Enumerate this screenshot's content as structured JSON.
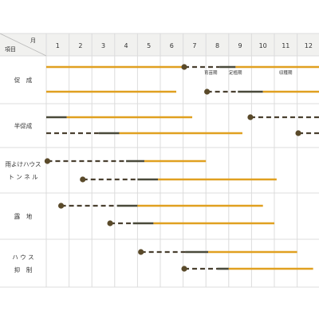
{
  "chart_data": {
    "type": "gantt",
    "header": {
      "month_label": "月",
      "item_label": "項目"
    },
    "months": [
      "1",
      "2",
      "3",
      "4",
      "5",
      "6",
      "7",
      "8",
      "9",
      "10",
      "11",
      "12"
    ],
    "phase_labels": [
      "育苗期",
      "定植期",
      "収穫期"
    ],
    "colors": {
      "sowing_dot": "#5a4a2a",
      "nursery_dash": "#4a4030",
      "planting": "#4a4a3a",
      "harvest": "#e0a020",
      "header_bg": "#f1f1ef",
      "grid": "#dcdcdc"
    },
    "groups": [
      {
        "label_lines": [
          "促　成"
        ],
        "rows": [
          {
            "segments": [
              {
                "kind": "harvest",
                "start": 1,
                "end": 7.0
              },
              {
                "kind": "sowing",
                "at": 7.05
              },
              {
                "kind": "nursery",
                "start": 7.05,
                "end": 8.6
              },
              {
                "kind": "planting",
                "start": 8.6,
                "end": 9.3
              },
              {
                "kind": "harvest",
                "start": 9.3,
                "end": 13
              }
            ]
          },
          {
            "segments": [
              {
                "kind": "harvest",
                "start": 1,
                "end": 6.7
              },
              {
                "kind": "sowing",
                "at": 8.05
              },
              {
                "kind": "nursery",
                "start": 8.05,
                "end": 9.4
              },
              {
                "kind": "planting",
                "start": 9.4,
                "end": 10.5
              },
              {
                "kind": "harvest",
                "start": 10.5,
                "end": 13
              }
            ]
          }
        ]
      },
      {
        "label_lines": [
          "半促成"
        ],
        "rows": [
          {
            "segments": [
              {
                "kind": "planting",
                "start": 1,
                "end": 1.9
              },
              {
                "kind": "harvest",
                "start": 1.9,
                "end": 7.4
              },
              {
                "kind": "sowing",
                "at": 9.95
              },
              {
                "kind": "nursery",
                "start": 9.95,
                "end": 13
              }
            ]
          },
          {
            "segments": [
              {
                "kind": "nursery",
                "start": 1,
                "end": 3.3
              },
              {
                "kind": "planting",
                "start": 3.3,
                "end": 4.2
              },
              {
                "kind": "harvest",
                "start": 4.2,
                "end": 9.6
              },
              {
                "kind": "sowing",
                "at": 12.05
              },
              {
                "kind": "nursery",
                "start": 12.05,
                "end": 13
              }
            ]
          }
        ]
      },
      {
        "label_lines": [
          "雨よけハウス",
          "ト ン ネ ル"
        ],
        "rows": [
          {
            "segments": [
              {
                "kind": "sowing",
                "at": 1.05
              },
              {
                "kind": "nursery",
                "start": 1.05,
                "end": 4.5
              },
              {
                "kind": "planting",
                "start": 4.5,
                "end": 5.3
              },
              {
                "kind": "harvest",
                "start": 5.3,
                "end": 8.0
              }
            ]
          },
          {
            "segments": [
              {
                "kind": "sowing",
                "at": 2.6
              },
              {
                "kind": "nursery",
                "start": 2.6,
                "end": 5.0
              },
              {
                "kind": "planting",
                "start": 5.0,
                "end": 5.9
              },
              {
                "kind": "harvest",
                "start": 5.9,
                "end": 11.1
              }
            ]
          }
        ]
      },
      {
        "label_lines": [
          "露　地"
        ],
        "rows": [
          {
            "segments": [
              {
                "kind": "sowing",
                "at": 1.65
              },
              {
                "kind": "nursery",
                "start": 1.65,
                "end": 4.1
              },
              {
                "kind": "planting",
                "start": 4.1,
                "end": 5.0
              },
              {
                "kind": "harvest",
                "start": 5.0,
                "end": 10.5
              }
            ]
          },
          {
            "segments": [
              {
                "kind": "sowing",
                "at": 3.8
              },
              {
                "kind": "nursery",
                "start": 3.8,
                "end": 4.8
              },
              {
                "kind": "planting",
                "start": 4.8,
                "end": 5.7
              },
              {
                "kind": "harvest",
                "start": 5.7,
                "end": 11.0
              }
            ]
          }
        ]
      },
      {
        "label_lines": [
          "ハ ウ ス",
          "抑　制"
        ],
        "rows": [
          {
            "segments": [
              {
                "kind": "sowing",
                "at": 5.15
              },
              {
                "kind": "nursery",
                "start": 5.15,
                "end": 7.1
              },
              {
                "kind": "planting",
                "start": 7.1,
                "end": 8.1
              },
              {
                "kind": "harvest",
                "start": 8.1,
                "end": 12.0
              }
            ]
          },
          {
            "segments": [
              {
                "kind": "sowing",
                "at": 7.05
              },
              {
                "kind": "nursery",
                "start": 7.05,
                "end": 8.5
              },
              {
                "kind": "planting",
                "start": 8.5,
                "end": 9.0
              },
              {
                "kind": "harvest",
                "start": 9.0,
                "end": 12.7
              }
            ]
          }
        ]
      }
    ]
  }
}
